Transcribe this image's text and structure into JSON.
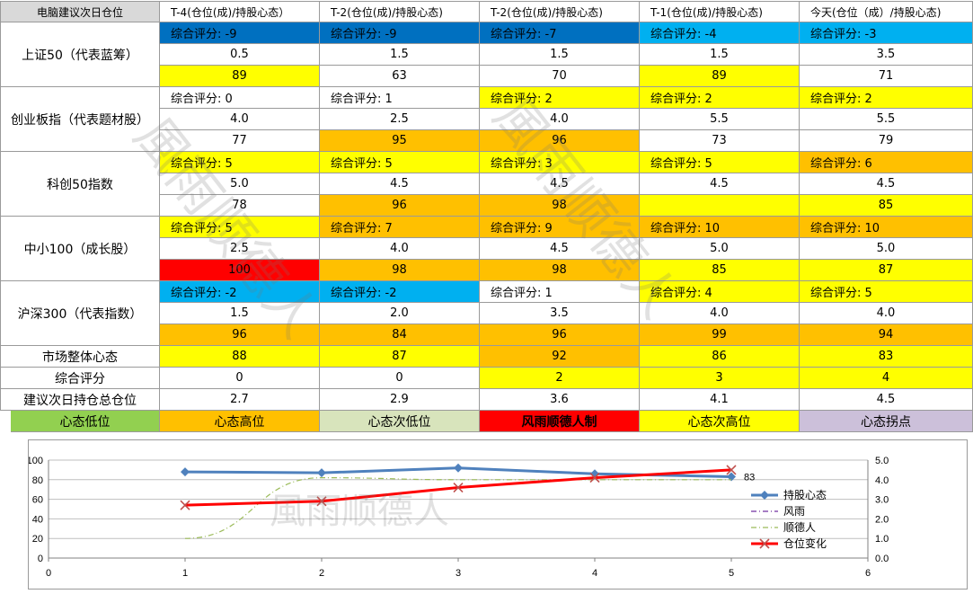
{
  "sheet": {
    "header": [
      "电脑建议次日仓位",
      "T-4(仓位(成)/持股心态）",
      "T-2(仓位(成)/持股心态)",
      "T-2(仓位(成)/持股心态)",
      "T-1(仓位(成)/持股心态)",
      "今天(仓位（成）/持股心态)"
    ],
    "indices": [
      {
        "name": "上证50（代表蓝筹）",
        "scores": [
          "综合评分: -9",
          "综合评分: -9",
          "综合评分: -7",
          "综合评分: -4",
          "综合评分: -3"
        ],
        "score_colors": [
          "#0070c0",
          "#0070c0",
          "#0070c0",
          "#00b0f0",
          "#00b0f0"
        ],
        "positions": [
          "0.5",
          "1.5",
          "1.5",
          "1.5",
          "3.5"
        ],
        "position_colors": [
          "#ffffff",
          "#ffffff",
          "#ffffff",
          "#ffffff",
          "#ffffff"
        ],
        "mindsets": [
          "89",
          "63",
          "70",
          "89",
          "71"
        ],
        "mindset_colors": [
          "#ffff00",
          "#ffffff",
          "#ffffff",
          "#ffff00",
          "#ffffff"
        ]
      },
      {
        "name": "创业板指（代表题材股）",
        "scores": [
          "综合评分: 0",
          "综合评分: 1",
          "综合评分: 2",
          "综合评分: 2",
          "综合评分: 2"
        ],
        "score_colors": [
          "#ffffff",
          "#ffffff",
          "#ffff00",
          "#ffff00",
          "#ffff00"
        ],
        "positions": [
          "4.0",
          "2.5",
          "4.0",
          "5.5",
          "5.5"
        ],
        "position_colors": [
          "#ffffff",
          "#ffffff",
          "#ffffff",
          "#ffffff",
          "#ffffff"
        ],
        "mindsets": [
          "77",
          "95",
          "96",
          "73",
          "79"
        ],
        "mindset_colors": [
          "#ffffff",
          "#ffc000",
          "#ffc000",
          "#ffffff",
          "#ffffff"
        ]
      },
      {
        "name": "科创50指数",
        "scores": [
          "综合评分: 5",
          "综合评分: 5",
          "综合评分: 3",
          "综合评分: 5",
          "综合评分: 6"
        ],
        "score_colors": [
          "#ffff00",
          "#ffff00",
          "#ffff00",
          "#ffff00",
          "#ffc000"
        ],
        "positions": [
          "5.0",
          "4.5",
          "4.5",
          "4.5",
          "4.5"
        ],
        "position_colors": [
          "#ffffff",
          "#ffffff",
          "#ffffff",
          "#ffffff",
          "#ffffff"
        ],
        "mindsets": [
          "78",
          "96",
          "98",
          "",
          "85"
        ],
        "mindset_colors": [
          "#ffffff",
          "#ffc000",
          "#ffc000",
          "#ffff00",
          "#ffff00"
        ]
      },
      {
        "name": "中小100（成长股）",
        "scores": [
          "综合评分: 5",
          "综合评分: 7",
          "综合评分: 9",
          "综合评分: 10",
          "综合评分: 10"
        ],
        "score_colors": [
          "#ffff00",
          "#ffc000",
          "#ffc000",
          "#ffc000",
          "#ffc000"
        ],
        "positions": [
          "2.5",
          "4.0",
          "4.5",
          "5.0",
          "5.0"
        ],
        "position_colors": [
          "#ffffff",
          "#ffffff",
          "#ffffff",
          "#ffffff",
          "#ffffff"
        ],
        "mindsets": [
          "100",
          "98",
          "98",
          "85",
          "87"
        ],
        "mindset_colors": [
          "#ff0000",
          "#ffc000",
          "#ffc000",
          "#ffff00",
          "#ffff00"
        ]
      },
      {
        "name": "沪深300（代表指数）",
        "scores": [
          "综合评分: -2",
          "综合评分: -2",
          "综合评分: 1",
          "综合评分: 4",
          "综合评分: 5"
        ],
        "score_colors": [
          "#00b0f0",
          "#00b0f0",
          "#ffffff",
          "#ffff00",
          "#ffff00"
        ],
        "positions": [
          "1.5",
          "2.0",
          "3.5",
          "4.0",
          "4.0"
        ],
        "position_colors": [
          "#ffffff",
          "#ffffff",
          "#ffffff",
          "#ffffff",
          "#ffffff"
        ],
        "mindsets": [
          "96",
          "84",
          "96",
          "99",
          "94"
        ],
        "mindset_colors": [
          "#ffc000",
          "#ffc000",
          "#ffc000",
          "#ffc000",
          "#ffc000"
        ]
      }
    ],
    "summary": [
      {
        "label": "市场整体心态",
        "values": [
          "88",
          "87",
          "92",
          "86",
          "83"
        ],
        "colors": [
          "#ffff00",
          "#ffff00",
          "#ffc000",
          "#ffff00",
          "#ffff00"
        ]
      },
      {
        "label": "综合评分",
        "values": [
          "0",
          "0",
          "2",
          "3",
          "4"
        ],
        "colors": [
          "#ffffff",
          "#ffffff",
          "#ffff00",
          "#ffff00",
          "#ffff00"
        ]
      },
      {
        "label": "建议次日持仓总仓位",
        "values": [
          "2.7",
          "2.9",
          "3.6",
          "4.1",
          "4.5"
        ],
        "colors": [
          "#ffffff",
          "#ffffff",
          "#ffffff",
          "#ffffff",
          "#ffffff"
        ]
      }
    ],
    "legend_bar": [
      {
        "label": "心态低位",
        "color": "#92d050",
        "bold": false
      },
      {
        "label": "心态高位",
        "color": "#ffc000",
        "bold": false
      },
      {
        "label": "心态次低位",
        "color": "#d8e4bc",
        "bold": false
      },
      {
        "label": "风雨顺德人制",
        "color": "#ff0000",
        "bold": true
      },
      {
        "label": "心态次高位",
        "color": "#ffff00",
        "bold": false
      },
      {
        "label": "心态拐点",
        "color": "#ccc0da",
        "bold": false
      }
    ]
  },
  "chart_data": {
    "type": "line",
    "x": [
      1,
      2,
      3,
      4,
      5
    ],
    "xlim": [
      0,
      6
    ],
    "x_ticks": [
      "0",
      "1",
      "2",
      "3",
      "4",
      "5",
      "6"
    ],
    "ylim_left": [
      0,
      100
    ],
    "y_ticks_left": [
      "0",
      "20",
      "40",
      "60",
      "80",
      "100"
    ],
    "ylim_right": [
      0,
      5
    ],
    "y_ticks_right": [
      "0.0",
      "1.0",
      "2.0",
      "3.0",
      "4.0",
      "5.0"
    ],
    "grid": true,
    "legend_position": "right",
    "series": [
      {
        "name": "持股心态",
        "axis": "left",
        "values": [
          88,
          87,
          92,
          86,
          83
        ],
        "color": "#4f81bd",
        "style": "diamond-line"
      },
      {
        "name": "风雨",
        "axis": "right",
        "values": [
          null,
          null,
          null,
          null,
          null
        ],
        "color": "#7030a0",
        "style": "dash-dot"
      },
      {
        "name": "顺德人",
        "axis": "right",
        "values": [
          1.0,
          4.1,
          4.0,
          4.0,
          4.0
        ],
        "color": "#9bbb59",
        "style": "dash-dot-smooth"
      },
      {
        "name": "仓位变化",
        "axis": "right",
        "values": [
          2.7,
          2.9,
          3.6,
          4.1,
          4.5
        ],
        "color": "#ff0000",
        "style": "x-line"
      }
    ],
    "data_labels": [
      {
        "series": "持股心态",
        "index": 4,
        "text": "83"
      }
    ]
  },
  "watermark": [
    "風雨顺德人",
    "風雨顺德人",
    "風雨顺德人"
  ]
}
